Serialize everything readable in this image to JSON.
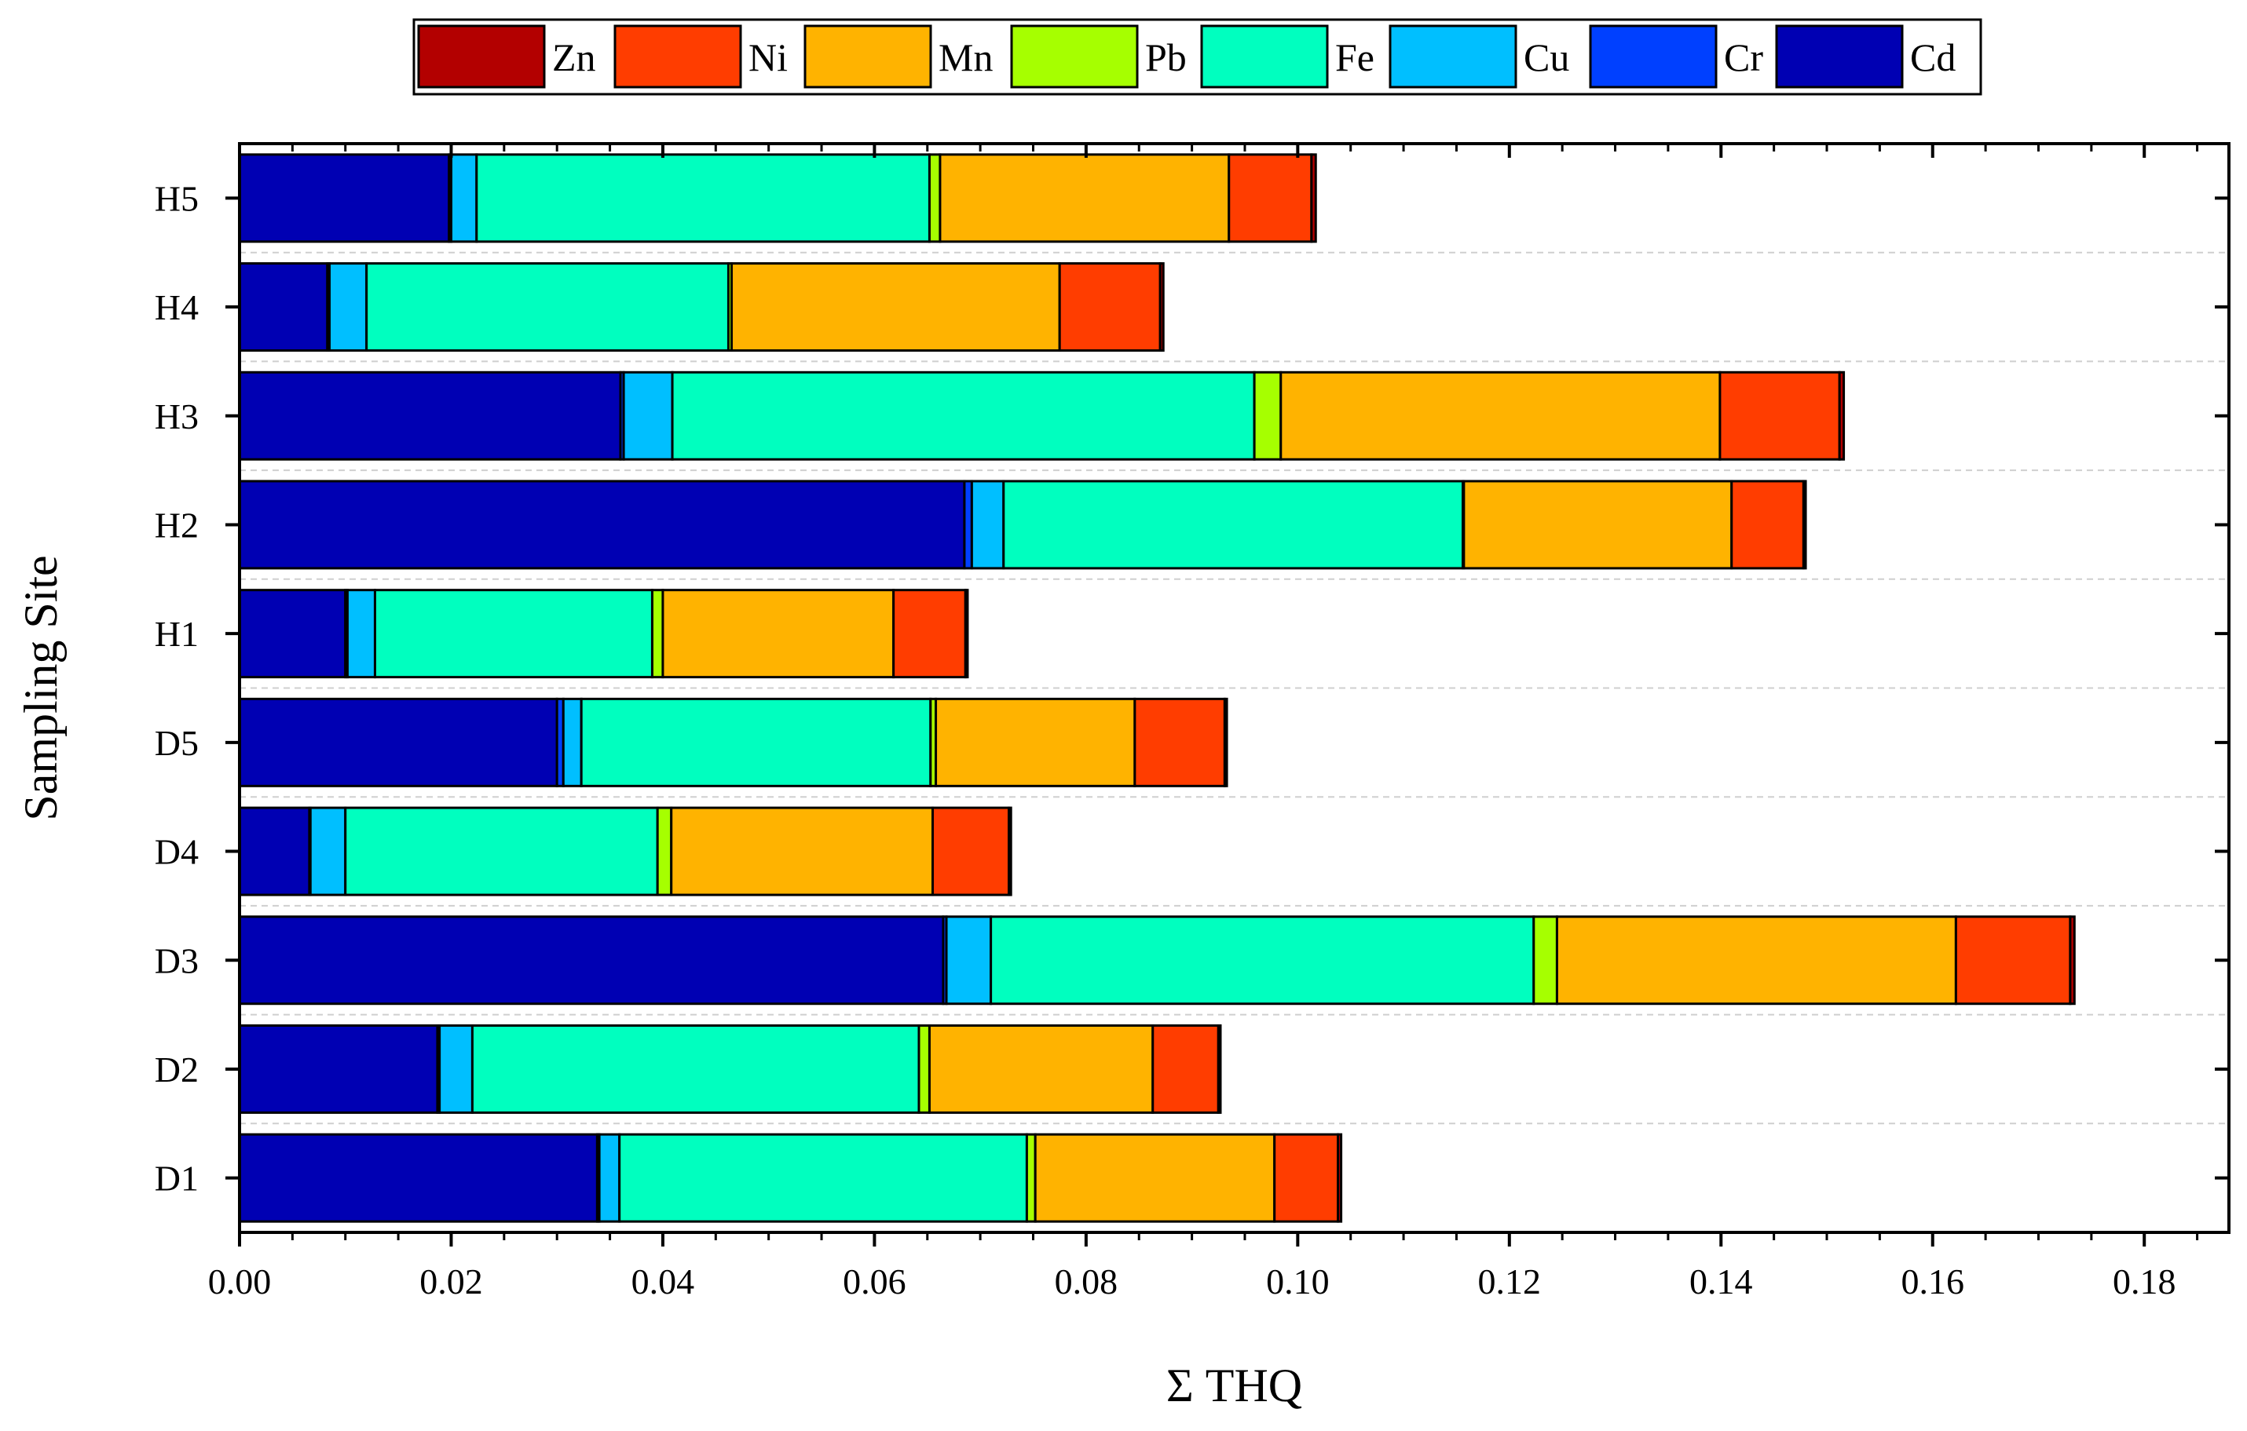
{
  "chart_data": {
    "type": "bar",
    "orientation": "horizontal",
    "stacked": true,
    "title": "",
    "xlabel": "Σ THQ",
    "ylabel": "Sampling Site",
    "xlim": [
      0,
      0.188
    ],
    "xticks": [
      "0.00",
      "0.02",
      "0.04",
      "0.06",
      "0.08",
      "0.10",
      "0.12",
      "0.14",
      "0.16",
      "0.18"
    ],
    "categories": [
      "H5",
      "H4",
      "H3",
      "H2",
      "H1",
      "D5",
      "D4",
      "D3",
      "D2",
      "D1"
    ],
    "legend_position": "top",
    "legend_order": [
      "Zn",
      "Ni",
      "Mn",
      "Pb",
      "Fe",
      "Cu",
      "Cr",
      "Cd"
    ],
    "stack_order": [
      "Cd",
      "Cr",
      "Cu",
      "Fe",
      "Pb",
      "Mn",
      "Ni",
      "Zn"
    ],
    "grid": {
      "horizontal_dashed": true
    },
    "colors": {
      "Zn": "#b30000",
      "Ni": "#ff3d00",
      "Mn": "#ffb300",
      "Pb": "#a6ff00",
      "Fe": "#00ffbf",
      "Cu": "#00bfff",
      "Cr": "#0040ff",
      "Cd": "#0000b3"
    },
    "series": [
      {
        "name": "Cd",
        "values": [
          0.0198,
          0.0083,
          0.036,
          0.0685,
          0.01,
          0.03,
          0.0066,
          0.0665,
          0.0187,
          0.0338
        ]
      },
      {
        "name": "Cr",
        "values": [
          0.0002,
          0.0002,
          0.0003,
          0.0007,
          0.0002,
          0.0006,
          0.0001,
          0.0003,
          0.0002,
          0.0002
        ]
      },
      {
        "name": "Cu",
        "values": [
          0.0024,
          0.0035,
          0.0046,
          0.003,
          0.0026,
          0.0017,
          0.0033,
          0.0042,
          0.0031,
          0.0019
        ]
      },
      {
        "name": "Fe",
        "values": [
          0.0428,
          0.0342,
          0.055,
          0.0434,
          0.0262,
          0.033,
          0.0295,
          0.0513,
          0.0422,
          0.0385
        ]
      },
      {
        "name": "Pb",
        "values": [
          0.001,
          0.0003,
          0.0025,
          0.0001,
          0.001,
          0.0005,
          0.0013,
          0.0022,
          0.001,
          0.0008
        ]
      },
      {
        "name": "Mn",
        "values": [
          0.0273,
          0.031,
          0.0415,
          0.0253,
          0.0218,
          0.0188,
          0.0247,
          0.0377,
          0.0211,
          0.0226
        ]
      },
      {
        "name": "Ni",
        "values": [
          0.0078,
          0.0095,
          0.0113,
          0.0068,
          0.0068,
          0.0085,
          0.0072,
          0.0108,
          0.0062,
          0.006
        ]
      },
      {
        "name": "Zn",
        "values": [
          0.0004,
          0.0003,
          0.0004,
          0.0002,
          0.0002,
          0.0002,
          0.0002,
          0.0004,
          0.0002,
          0.0003
        ]
      }
    ]
  }
}
